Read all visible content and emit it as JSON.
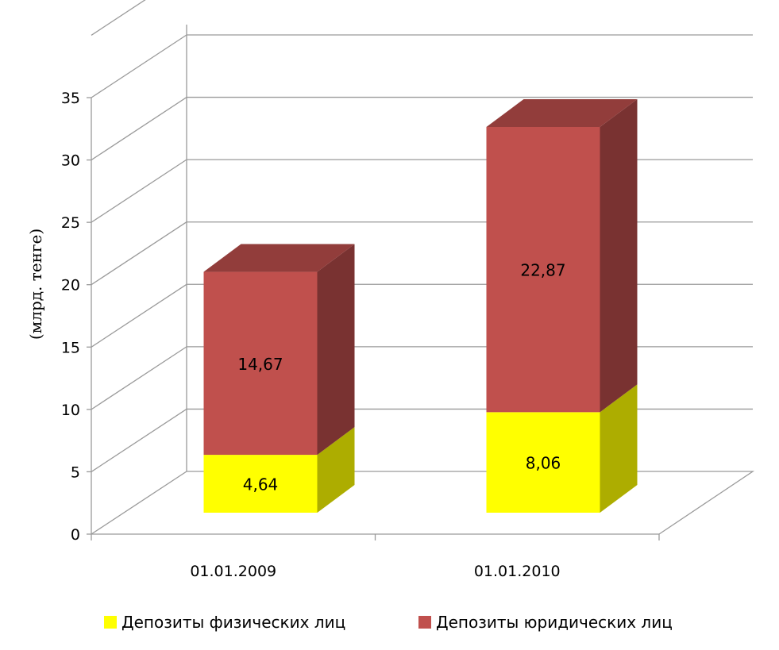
{
  "chart_data": {
    "type": "bar",
    "stacked": true,
    "three_d": true,
    "categories": [
      "01.01.2009",
      "01.01.2010"
    ],
    "series": [
      {
        "name": "Депозиты физических лиц",
        "values": [
          4.64,
          8.06
        ],
        "labels": [
          "4,64",
          "8,06"
        ],
        "color": "#ffff00"
      },
      {
        "name": "Депозиты юридических лиц",
        "values": [
          14.67,
          22.87
        ],
        "labels": [
          "14,67",
          "22,87"
        ],
        "color": "#c0504d"
      }
    ],
    "ylabel": "(млрд. тенге)",
    "ylim": [
      0,
      35
    ],
    "yticks": [
      0,
      5,
      10,
      15,
      20,
      25,
      30,
      35
    ],
    "grid": true,
    "legend": "bottom"
  }
}
